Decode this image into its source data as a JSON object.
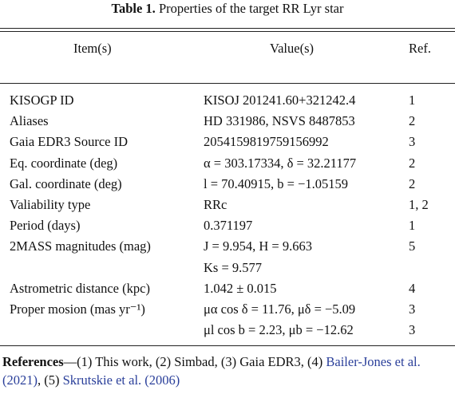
{
  "title": {
    "label": "Table 1.",
    "text": "Properties of the target RR Lyr star"
  },
  "table": {
    "header": [
      "Item(s)",
      "Value(s)",
      "Ref."
    ],
    "rows": [
      {
        "item": "KISOGP ID",
        "value": "KISOJ 201241.60+321242.4",
        "ref": "1"
      },
      {
        "item": "Aliases",
        "value": "HD 331986, NSVS 8487853",
        "ref": "2"
      },
      {
        "item": "Gaia EDR3 Source ID",
        "value": "2054159819759156992",
        "ref": "3"
      },
      {
        "item": "Eq. coordinate (deg)",
        "value": "α = 303.17334,  δ = 32.21177",
        "ref": "2"
      },
      {
        "item": "Gal. coordinate (deg)",
        "value": "l = 70.40915,  b = −1.05159",
        "ref": "2"
      },
      {
        "item": "Valiability type",
        "value": "RRc",
        "ref": "1, 2"
      },
      {
        "item": "Period (days)",
        "value": "0.371197",
        "ref": "1"
      },
      {
        "item": "2MASS magnitudes (mag)",
        "value": "J = 9.954,  H = 9.663",
        "ref": "5"
      },
      {
        "value": "Ks = 9.577"
      },
      {
        "item": "Astrometric distance (kpc)",
        "value": "1.042 ± 0.015",
        "ref": "4"
      },
      {
        "item": "Proper mosion (mas yr⁻¹)",
        "value": "μα cos δ = 11.76,  μδ = −5.09",
        "ref": "3"
      },
      {
        "value": "μl cos b = 2.23,  μb = −12.62",
        "ref": "3"
      }
    ]
  },
  "references": {
    "label": "References",
    "text_1": "—(1) This work, (2) Simbad, (3) Gaia EDR3, (4) ",
    "link_1": "Bailer-Jones et al. (2021)",
    "text_2": ", (5) ",
    "link_2": "Skrutskie et al. (2006)"
  }
}
